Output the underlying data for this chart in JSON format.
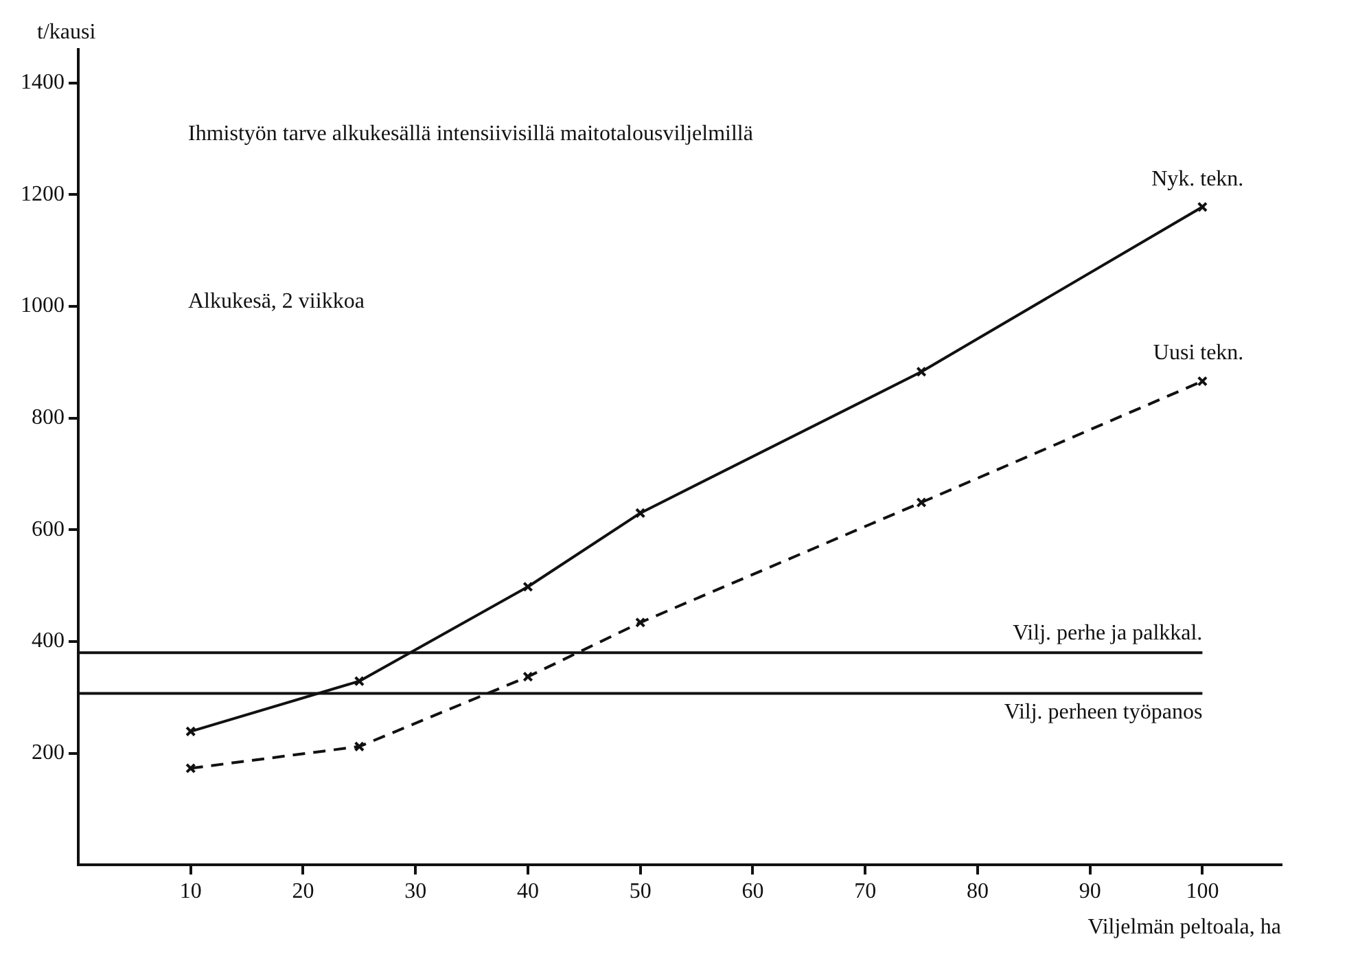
{
  "chart_data": {
    "type": "line",
    "title": "Ihmistyön tarve alkukesällä intensiivisillä maitotalousviljelmillä",
    "xlabel": "Viljelmän peltoala, ha",
    "ylabel": "t/kausi",
    "annotations": [
      "Alkukesä, 2 viikkoa"
    ],
    "x": [
      10,
      25,
      40,
      50,
      75,
      100
    ],
    "series": [
      {
        "name": "Nyk. tekn.",
        "color": "#111111",
        "values": [
          239,
          329,
          498,
          630,
          883,
          1178
        ],
        "line_style": "solid"
      },
      {
        "name": "Uusi tekn.",
        "color": "#111111",
        "values": [
          173,
          212,
          337,
          434,
          649,
          866
        ],
        "line_style": "dashed"
      }
    ],
    "ref_lines": [
      {
        "axis": "y",
        "value": 380,
        "label": "Vilj. perhe ja palkkal."
      },
      {
        "axis": "y",
        "value": 307,
        "label": "Vilj. perheen työpanos"
      }
    ],
    "xlim": [
      0,
      107
    ],
    "xticks": [
      10,
      20,
      30,
      40,
      50,
      60,
      70,
      80,
      90,
      100
    ],
    "ylim": [
      0,
      1460
    ],
    "yticks": [
      200,
      400,
      600,
      800,
      1000,
      1200,
      1400
    ],
    "grid": false,
    "legend": false,
    "marker": "cross"
  }
}
